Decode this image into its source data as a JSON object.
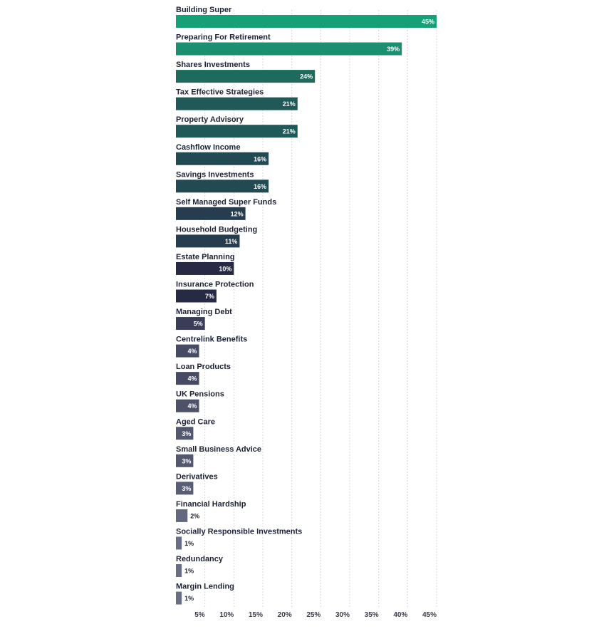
{
  "chart_data": {
    "type": "bar",
    "orientation": "horizontal",
    "categories": [
      "Building Super",
      "Preparing For Retirement",
      "Shares Investments",
      "Tax Effective Strategies",
      "Property Advisory",
      "Cashflow Income",
      "Savings Investments",
      "Self Managed Super Funds",
      "Household Budgeting",
      "Estate Planning",
      "Insurance Protection",
      "Managing Debt",
      "Centrelink Benefits",
      "Loan Products",
      "UK Pensions",
      "Aged Care",
      "Small Business Advice",
      "Derivatives",
      "Financial Hardship",
      "Socially Responsible Investments",
      "Redundancy",
      "Margin Lending"
    ],
    "values": [
      45,
      39,
      24,
      21,
      21,
      16,
      16,
      12,
      11,
      10,
      7,
      5,
      4,
      4,
      4,
      3,
      3,
      3,
      2,
      1,
      1,
      1
    ],
    "value_labels": [
      "45%",
      "39%",
      "24%",
      "21%",
      "21%",
      "16%",
      "16%",
      "12%",
      "11%",
      "10%",
      "7%",
      "5%",
      "4%",
      "4%",
      "4%",
      "3%",
      "3%",
      "3%",
      "2%",
      "1%",
      "1%",
      "1%"
    ],
    "bar_colors": [
      "#16a077",
      "#1b9070",
      "#1e6b5e",
      "#1f5a58",
      "#1f5a58",
      "#214a52",
      "#214a52",
      "#263d50",
      "#263d50",
      "#272a44",
      "#272a44",
      "#3a3d58",
      "#464a62",
      "#464a62",
      "#4e5268",
      "#54586e",
      "#54586e",
      "#5a5e74",
      "#64687e",
      "#6a6e84",
      "#6a6e84",
      "#6a6e84"
    ],
    "x_ticks": [
      5,
      10,
      15,
      20,
      25,
      30,
      35,
      40,
      45
    ],
    "x_tick_labels": [
      "5%",
      "10%",
      "15%",
      "20%",
      "25%",
      "30%",
      "35%",
      "40%",
      "45%"
    ],
    "xlim": [
      0,
      45
    ],
    "grid": true,
    "title": "",
    "xlabel": "",
    "ylabel": ""
  }
}
